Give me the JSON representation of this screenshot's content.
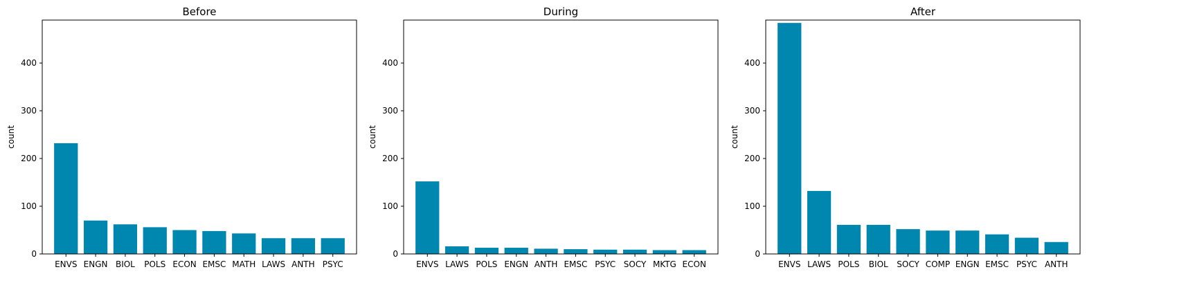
{
  "bar_color": "#0087b0",
  "chart_data": [
    {
      "type": "bar",
      "title": "Before",
      "xlabel": "",
      "ylabel": "count",
      "ylim": [
        0,
        490
      ],
      "yticks": [
        0,
        100,
        200,
        300,
        400
      ],
      "categories": [
        "ENVS",
        "ENGN",
        "BIOL",
        "POLS",
        "ECON",
        "EMSC",
        "MATH",
        "LAWS",
        "ANTH",
        "PSYC"
      ],
      "values": [
        232,
        70,
        62,
        56,
        50,
        48,
        43,
        33,
        33,
        33
      ]
    },
    {
      "type": "bar",
      "title": "During",
      "xlabel": "",
      "ylabel": "count",
      "ylim": [
        0,
        490
      ],
      "yticks": [
        0,
        100,
        200,
        300,
        400
      ],
      "categories": [
        "ENVS",
        "LAWS",
        "POLS",
        "ENGN",
        "ANTH",
        "EMSC",
        "PSYC",
        "SOCY",
        "MKTG",
        "ECON"
      ],
      "values": [
        152,
        16,
        13,
        13,
        11,
        10,
        9,
        9,
        8,
        8
      ]
    },
    {
      "type": "bar",
      "title": "After",
      "xlabel": "",
      "ylabel": "count",
      "ylim": [
        0,
        490
      ],
      "yticks": [
        0,
        100,
        200,
        300,
        400
      ],
      "categories": [
        "ENVS",
        "LAWS",
        "POLS",
        "BIOL",
        "SOCY",
        "COMP",
        "ENGN",
        "EMSC",
        "PSYC",
        "ANTH"
      ],
      "values": [
        484,
        132,
        61,
        61,
        52,
        49,
        49,
        41,
        34,
        25
      ]
    }
  ]
}
